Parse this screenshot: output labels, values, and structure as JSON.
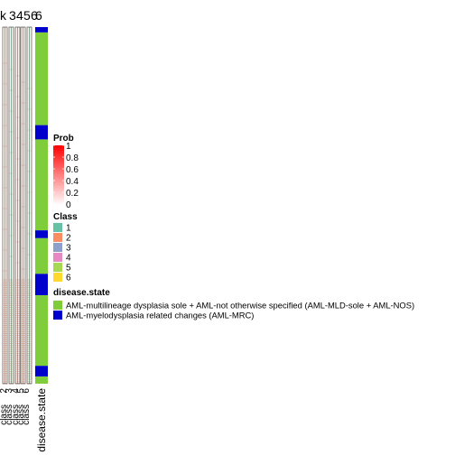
{
  "chart_data": {
    "type": "heatmap",
    "title": "",
    "header_labels": [
      "k",
      "3",
      "4",
      "5",
      "6"
    ],
    "header_labels_extra": [
      "6"
    ],
    "column_labels": [
      "2",
      "3",
      "4",
      "5",
      "6",
      "class",
      "class",
      "class",
      "class",
      "class",
      "disease.state"
    ],
    "row_groups": [
      {
        "state": "AML-myelodysplasia related changes (AML-MRC)",
        "fraction": 0.015
      },
      {
        "state": "AML-multilineage dysplasia sole + AML-not otherwise specified (AML-MLD-sole + AML-NOS)",
        "fraction": 0.26
      },
      {
        "state": "AML-myelodysplasia related changes (AML-MRC)",
        "fraction": 0.04
      },
      {
        "state": "AML-multilineage dysplasia sole + AML-not otherwise specified (AML-MLD-sole + AML-NOS)",
        "fraction": 0.255
      },
      {
        "state": "AML-myelodysplasia related changes (AML-MRC)",
        "fraction": 0.022
      },
      {
        "state": "AML-multilineage dysplasia sole + AML-not otherwise specified (AML-MLD-sole + AML-NOS)",
        "fraction": 0.1
      },
      {
        "state": "AML-myelodysplasia related changes (AML-MRC)",
        "fraction": 0.06
      },
      {
        "state": "AML-multilineage dysplasia sole + AML-not otherwise specified (AML-MLD-sole + AML-NOS)",
        "fraction": 0.198
      },
      {
        "state": "AML-myelodysplasia related changes (AML-MRC)",
        "fraction": 0.03
      },
      {
        "state": "AML-multilineage dysplasia sole + AML-not otherwise specified (AML-MLD-sole + AML-NOS)",
        "fraction": 0.02
      }
    ],
    "legends": [
      {
        "title": "Prob",
        "type": "gradient",
        "ticks": [
          "1",
          "0.8",
          "0.6",
          "0.4",
          "0.2",
          "0"
        ],
        "colors": [
          "#ff0000",
          "#ffffff"
        ]
      },
      {
        "title": "Class",
        "type": "discrete",
        "items": [
          {
            "label": "1",
            "color": "#66C2A5"
          },
          {
            "label": "2",
            "color": "#FC8D62"
          },
          {
            "label": "3",
            "color": "#8DA0CB"
          },
          {
            "label": "4",
            "color": "#E78AC3"
          },
          {
            "label": "5",
            "color": "#A6D854"
          },
          {
            "label": "6",
            "color": "#FFD92F"
          }
        ]
      },
      {
        "title": "disease.state",
        "type": "discrete",
        "items": [
          {
            "label": "AML-multilineage dysplasia sole + AML-not otherwise specified (AML-MLD-sole + AML-NOS)",
            "color": "#7FCD3A"
          },
          {
            "label": "AML-myelodysplasia related changes (AML-MRC)",
            "color": "#0000CD"
          }
        ]
      }
    ]
  }
}
